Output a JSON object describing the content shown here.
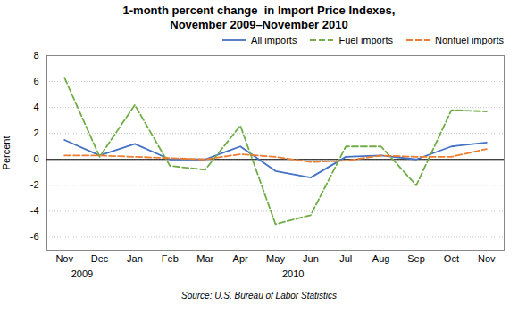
{
  "chart_data": {
    "type": "line",
    "title": "1-month percent change  in Import Price Indexes,\nNovember 2009–November 2010",
    "ylabel": "Percent",
    "source": "Source: U.S. Bureau of Labor Statistics",
    "categories": [
      "Nov",
      "Dec",
      "Jan",
      "Feb",
      "Mar",
      "Apr",
      "May",
      "Jun",
      "Jul",
      "Aug",
      "Sep",
      "Oct",
      "Nov"
    ],
    "series": [
      {
        "name": "All imports",
        "color": "#4472C4",
        "line_style": "solid",
        "values": [
          1.5,
          0.3,
          1.2,
          0.0,
          0.0,
          1.0,
          -0.9,
          -1.4,
          0.2,
          0.3,
          0.0,
          1.0,
          1.3
        ]
      },
      {
        "name": "Fuel imports",
        "color": "#70AD47",
        "line_style": "dashed",
        "values": [
          6.3,
          0.2,
          4.2,
          -0.5,
          -0.8,
          2.6,
          -5.0,
          -4.3,
          1.0,
          1.0,
          -2.0,
          3.8,
          3.7
        ]
      },
      {
        "name": "Nonfuel imports",
        "color": "#ED7D31",
        "line_style": "dashed",
        "values": [
          0.3,
          0.3,
          0.2,
          0.1,
          0.0,
          0.4,
          0.2,
          -0.2,
          -0.1,
          0.3,
          0.2,
          0.2,
          0.8
        ]
      }
    ],
    "annotations": [
      {
        "text": "2009",
        "x": 0.5
      },
      {
        "text": "2010",
        "x": 6.5
      }
    ],
    "ylim": [
      -7,
      8
    ],
    "yticks": [
      -6,
      -4,
      -2,
      0,
      2,
      4,
      6,
      8
    ],
    "grid": true,
    "legend": "upper right"
  }
}
